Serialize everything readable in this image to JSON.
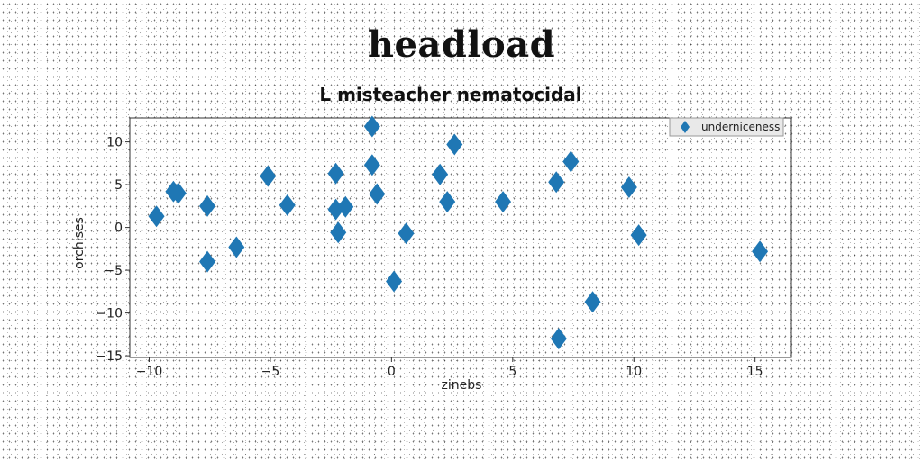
{
  "page": {
    "title": "headload"
  },
  "chart_data": {
    "type": "scatter",
    "title": "L misteacher nematocidal",
    "xlabel": "zinebs",
    "ylabel": "orchises",
    "xlim": [
      -10.8,
      16.5
    ],
    "ylim": [
      -15.2,
      12.8
    ],
    "xticks": [
      -10,
      -5,
      0,
      5,
      10,
      15
    ],
    "yticks": [
      -15,
      -10,
      -5,
      0,
      5,
      10
    ],
    "grid": false,
    "legend_position": "top-right",
    "marker": "diamond",
    "color": "#1f77b4",
    "series": [
      {
        "name": "underniceness",
        "points": [
          [
            -9.7,
            1.3
          ],
          [
            -9.0,
            4.2
          ],
          [
            -8.8,
            4.0
          ],
          [
            -7.6,
            2.5
          ],
          [
            -7.6,
            -4.0
          ],
          [
            -6.4,
            -2.3
          ],
          [
            -5.1,
            6.0
          ],
          [
            -4.3,
            2.6
          ],
          [
            -2.3,
            6.3
          ],
          [
            -2.3,
            2.1
          ],
          [
            -2.2,
            -0.6
          ],
          [
            -1.9,
            2.4
          ],
          [
            -0.8,
            11.8
          ],
          [
            -0.8,
            7.3
          ],
          [
            -0.6,
            3.9
          ],
          [
            0.1,
            -6.3
          ],
          [
            0.6,
            -0.7
          ],
          [
            2.0,
            6.2
          ],
          [
            2.3,
            3.0
          ],
          [
            2.6,
            9.7
          ],
          [
            4.6,
            3.0
          ],
          [
            6.8,
            5.3
          ],
          [
            6.9,
            -13.0
          ],
          [
            7.4,
            7.7
          ],
          [
            8.3,
            -8.7
          ],
          [
            9.8,
            4.7
          ],
          [
            10.2,
            -0.9
          ],
          [
            15.2,
            -2.8
          ]
        ]
      }
    ]
  }
}
